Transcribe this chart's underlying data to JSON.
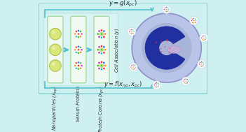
{
  "bg_color": "#cff0f0",
  "border_color": "#80d0d0",
  "arrow_color": "#50c0cc",
  "np_color": "#d8e878",
  "np_outline": "#b0c050",
  "box_face": "#f0faf0",
  "box_edge": "#90d890",
  "protein_colors_serum": [
    "#ff2020",
    "#ff2020",
    "#2060ff",
    "#20c020",
    "#ff8000",
    "#c020c0",
    "#00c0d0",
    "#20c020",
    "#ff8000"
  ],
  "protein_colors_corona": [
    "#c020c0",
    "#ff2020",
    "#2060ff",
    "#20c020",
    "#ff8000",
    "#c020c0",
    "#00c0d0",
    "#ff2020",
    "#20c020"
  ],
  "protein_colors_cell": [
    "#ff8000",
    "#ff2020",
    "#2060ff",
    "#20c020",
    "#c020c0",
    "#00c0d0",
    "#ff8000",
    "#20c020",
    "#ff2020"
  ],
  "cell_outer_color": "#b8c4e8",
  "cell_outer_edge": "#9090c8",
  "cell_inner_color": "#9090c0",
  "cell_dark_color": "#2030a0",
  "cell_nucleus_color": "#c8b0d8",
  "eq_top": "$y = g(x_{pc})$",
  "eq_bottom": "$y = f(x_{np}, x_{pc})$",
  "label_np": "Nanoparticles ($x_{np}$)",
  "label_serum": "Serum Proteins",
  "label_corona": "Protein Corona ($x_{pc}$)",
  "label_cell": "Cell Association ($y$)"
}
